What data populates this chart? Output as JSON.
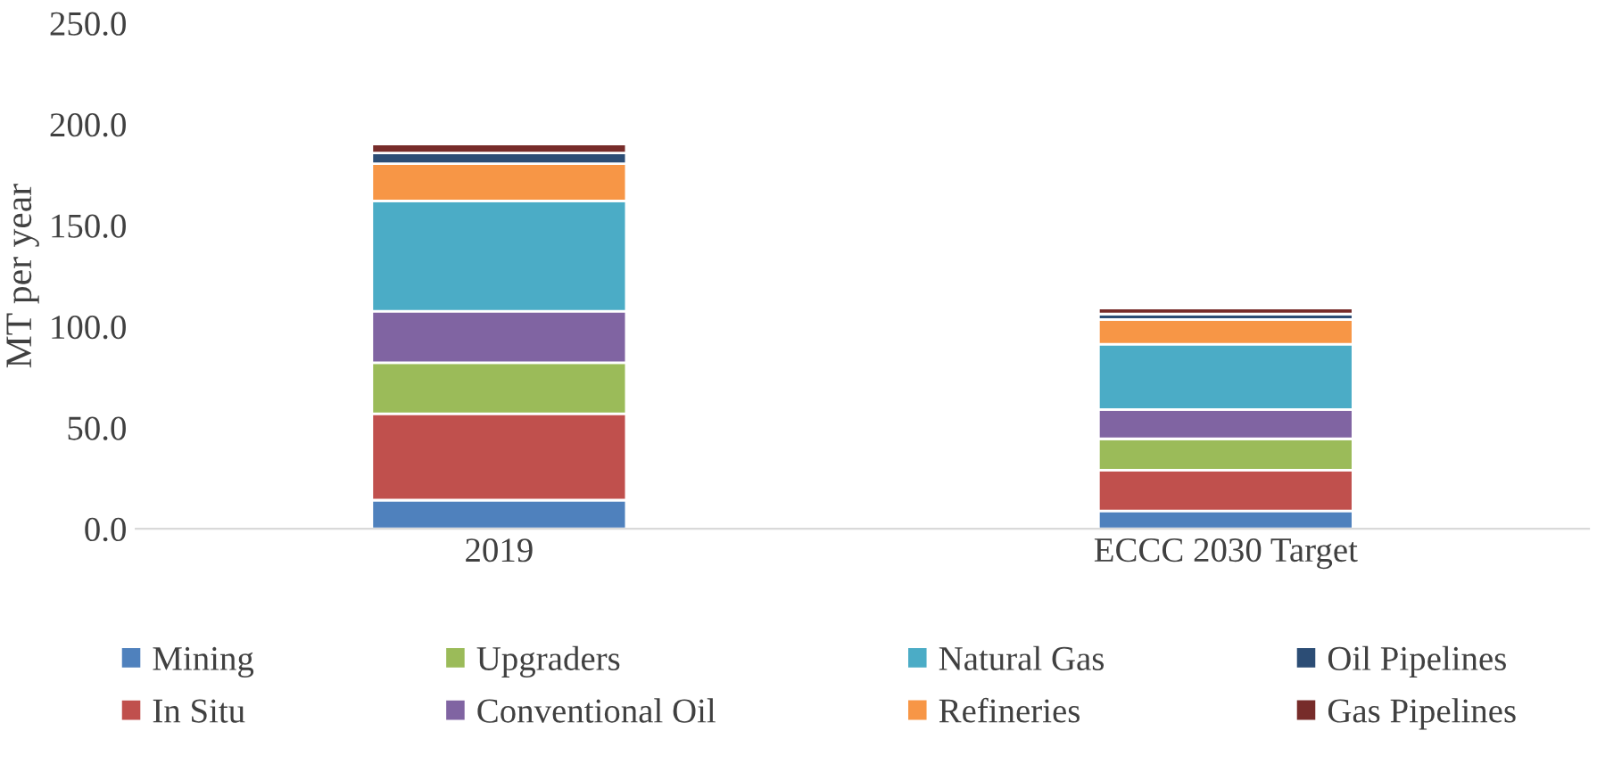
{
  "chart_data": {
    "type": "bar",
    "stacked": true,
    "ylabel": "MT per year",
    "categories": [
      "2019",
      "ECCC 2030 Target"
    ],
    "series": [
      {
        "name": "Mining",
        "color": "#4f81bd",
        "values": [
          14.2,
          8.9
        ]
      },
      {
        "name": "In Situ",
        "color": "#c0504d",
        "values": [
          42.7,
          20.1
        ]
      },
      {
        "name": "Upgraders",
        "color": "#9bbb59",
        "values": [
          25.2,
          15.5
        ]
      },
      {
        "name": "Conventional Oil",
        "color": "#8064a2",
        "values": [
          25.5,
          14.5
        ]
      },
      {
        "name": "Natural Gas",
        "color": "#4bacc6",
        "values": [
          54.5,
          32.3
        ]
      },
      {
        "name": "Refineries",
        "color": "#f79646",
        "values": [
          18.4,
          12.2
        ]
      },
      {
        "name": "Oil Pipelines",
        "color": "#2c4d75",
        "values": [
          5.3,
          2.7
        ]
      },
      {
        "name": "Gas Pipelines",
        "color": "#772c2a",
        "values": [
          4.4,
          2.9
        ]
      }
    ],
    "ylim": [
      0,
      250
    ],
    "yticks": [
      {
        "value": 0,
        "label": "0.0"
      },
      {
        "value": 50,
        "label": "50.0"
      },
      {
        "value": 100,
        "label": "100.0"
      },
      {
        "value": 150,
        "label": "150.0"
      },
      {
        "value": 200,
        "label": "200.0"
      },
      {
        "value": 250,
        "label": "250.0"
      }
    ],
    "grid": false,
    "legend": "bottom"
  }
}
